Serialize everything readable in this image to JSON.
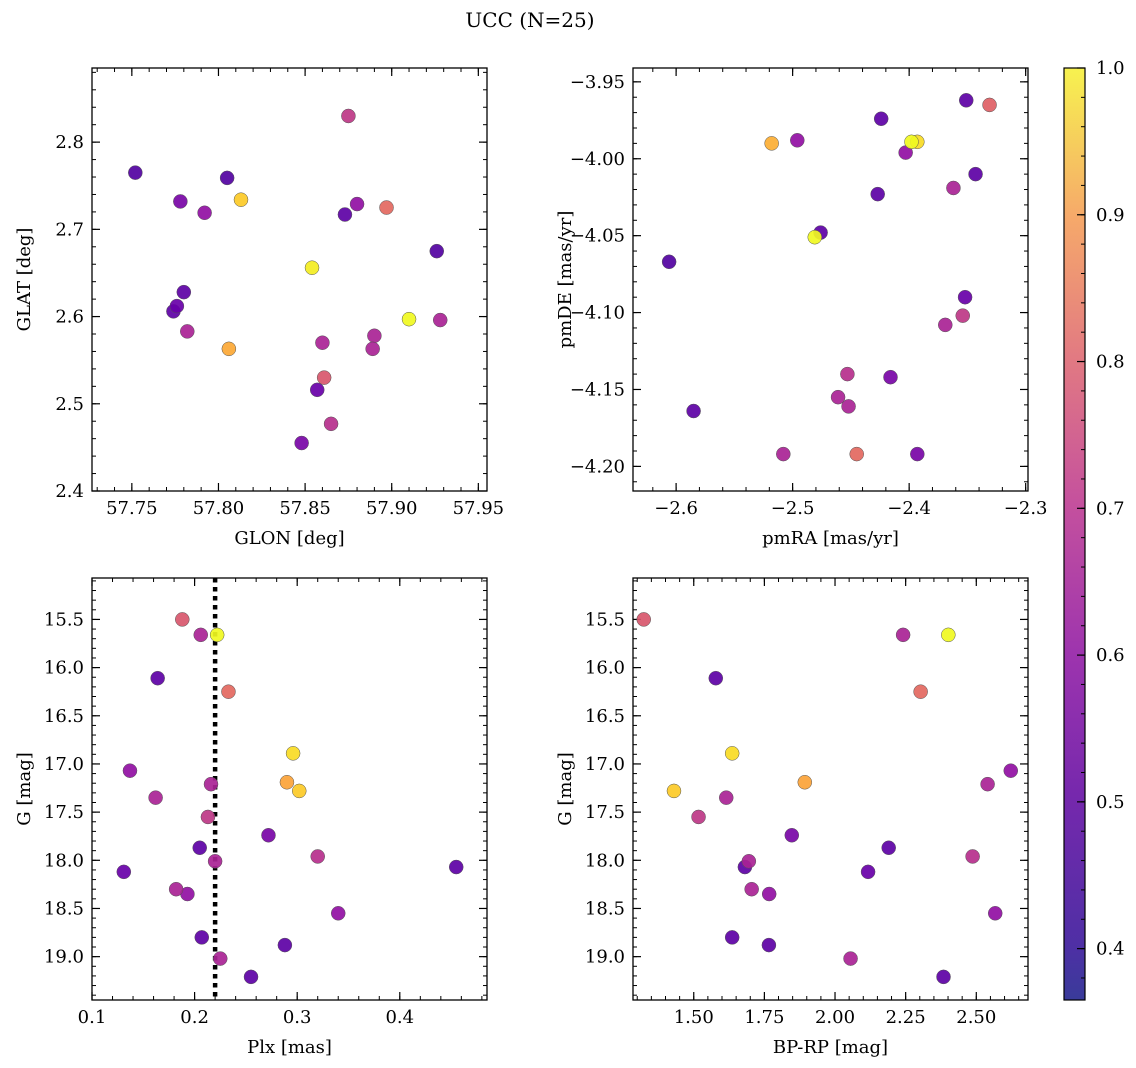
{
  "title": "UCC (N=25)",
  "colorbar": {
    "range": [
      0.365,
      1.0
    ],
    "ticks": [
      0.4,
      0.5,
      0.6,
      0.7,
      0.8,
      0.9,
      1.0
    ],
    "tick_labels": [
      "0.4",
      "0.5",
      "0.6",
      "0.7",
      "0.8",
      "0.9",
      "1.0"
    ],
    "colormap": "plasma"
  },
  "chart_data": [
    {
      "type": "scatter",
      "id": "glon-glat",
      "xlabel": "GLON [deg]",
      "ylabel": "GLAT [deg]",
      "xlim": [
        57.727,
        57.955
      ],
      "ylim": [
        2.4,
        2.885
      ],
      "xticks": [
        57.75,
        57.8,
        57.85,
        57.9,
        57.95
      ],
      "xtick_labels": [
        "57.75",
        "57.80",
        "57.85",
        "57.90",
        "57.95"
      ],
      "yticks": [
        2.4,
        2.5,
        2.6,
        2.7,
        2.8
      ],
      "ytick_labels": [
        "2.4",
        "2.5",
        "2.6",
        "2.7",
        "2.8"
      ],
      "points": [
        {
          "x": 57.752,
          "y": 2.765,
          "c": 0.38
        },
        {
          "x": 57.778,
          "y": 2.732,
          "c": 0.45
        },
        {
          "x": 57.792,
          "y": 2.719,
          "c": 0.5
        },
        {
          "x": 57.805,
          "y": 2.759,
          "c": 0.38
        },
        {
          "x": 57.813,
          "y": 2.734,
          "c": 0.92
        },
        {
          "x": 57.78,
          "y": 2.628,
          "c": 0.4
        },
        {
          "x": 57.776,
          "y": 2.612,
          "c": 0.42
        },
        {
          "x": 57.774,
          "y": 2.606,
          "c": 0.4
        },
        {
          "x": 57.782,
          "y": 2.583,
          "c": 0.55
        },
        {
          "x": 57.806,
          "y": 2.563,
          "c": 0.86
        },
        {
          "x": 57.875,
          "y": 2.83,
          "c": 0.6
        },
        {
          "x": 57.88,
          "y": 2.729,
          "c": 0.5
        },
        {
          "x": 57.873,
          "y": 2.717,
          "c": 0.4
        },
        {
          "x": 57.897,
          "y": 2.725,
          "c": 0.72
        },
        {
          "x": 57.926,
          "y": 2.675,
          "c": 0.38
        },
        {
          "x": 57.854,
          "y": 2.656,
          "c": 0.98
        },
        {
          "x": 57.91,
          "y": 2.597,
          "c": 1.0
        },
        {
          "x": 57.928,
          "y": 2.596,
          "c": 0.55
        },
        {
          "x": 57.89,
          "y": 2.578,
          "c": 0.55
        },
        {
          "x": 57.889,
          "y": 2.563,
          "c": 0.55
        },
        {
          "x": 57.86,
          "y": 2.57,
          "c": 0.55
        },
        {
          "x": 57.861,
          "y": 2.53,
          "c": 0.68
        },
        {
          "x": 57.857,
          "y": 2.516,
          "c": 0.42
        },
        {
          "x": 57.865,
          "y": 2.477,
          "c": 0.58
        },
        {
          "x": 57.848,
          "y": 2.455,
          "c": 0.45
        }
      ]
    },
    {
      "type": "scatter",
      "id": "pmra-pmde",
      "xlabel": "pmRA [mas/yr]",
      "ylabel": "pmDE [mas/yr]",
      "xlim": [
        -2.637,
        -2.298
      ],
      "ylim": [
        -4.216,
        -3.941
      ],
      "xticks": [
        -2.6,
        -2.5,
        -2.4,
        -2.3
      ],
      "xtick_labels": [
        "−2.6",
        "−2.5",
        "−2.4",
        "−2.3"
      ],
      "yticks": [
        -4.2,
        -4.15,
        -4.1,
        -4.05,
        -4.0,
        -3.95
      ],
      "ytick_labels": [
        "−4.20",
        "−4.15",
        "−4.10",
        "−4.05",
        "−4.00",
        "−3.95"
      ],
      "points": [
        {
          "x": -2.351,
          "y": -3.962,
          "c": 0.4
        },
        {
          "x": -2.331,
          "y": -3.965,
          "c": 0.7
        },
        {
          "x": -2.424,
          "y": -3.974,
          "c": 0.4
        },
        {
          "x": -2.496,
          "y": -3.988,
          "c": 0.5
        },
        {
          "x": -2.518,
          "y": -3.99,
          "c": 0.87
        },
        {
          "x": -2.398,
          "y": -3.989,
          "c": 1.0
        },
        {
          "x": -2.393,
          "y": -3.989,
          "c": 0.95
        },
        {
          "x": -2.403,
          "y": -3.996,
          "c": 0.5
        },
        {
          "x": -2.343,
          "y": -4.01,
          "c": 0.4
        },
        {
          "x": -2.362,
          "y": -4.019,
          "c": 0.55
        },
        {
          "x": -2.427,
          "y": -4.023,
          "c": 0.4
        },
        {
          "x": -2.476,
          "y": -4.048,
          "c": 0.4
        },
        {
          "x": -2.481,
          "y": -4.051,
          "c": 1.0
        },
        {
          "x": -2.606,
          "y": -4.067,
          "c": 0.38
        },
        {
          "x": -2.352,
          "y": -4.09,
          "c": 0.42
        },
        {
          "x": -2.354,
          "y": -4.102,
          "c": 0.6
        },
        {
          "x": -2.369,
          "y": -4.108,
          "c": 0.55
        },
        {
          "x": -2.453,
          "y": -4.14,
          "c": 0.58
        },
        {
          "x": -2.416,
          "y": -4.142,
          "c": 0.45
        },
        {
          "x": -2.461,
          "y": -4.155,
          "c": 0.55
        },
        {
          "x": -2.452,
          "y": -4.161,
          "c": 0.55
        },
        {
          "x": -2.585,
          "y": -4.164,
          "c": 0.4
        },
        {
          "x": -2.508,
          "y": -4.192,
          "c": 0.55
        },
        {
          "x": -2.445,
          "y": -4.192,
          "c": 0.72
        },
        {
          "x": -2.393,
          "y": -4.192,
          "c": 0.45
        }
      ]
    },
    {
      "type": "scatter",
      "id": "plx-g",
      "xlabel": "Plx [mas]",
      "ylabel": "G [mag]",
      "xlim": [
        0.1,
        0.485
      ],
      "ylim": [
        19.45,
        15.07
      ],
      "inverted_y": true,
      "xticks": [
        0.1,
        0.2,
        0.3,
        0.4
      ],
      "xtick_labels": [
        "0.1",
        "0.2",
        "0.3",
        "0.4"
      ],
      "yticks": [
        15.5,
        16.0,
        16.5,
        17.0,
        17.5,
        18.0,
        18.5,
        19.0
      ],
      "ytick_labels": [
        "15.5",
        "16.0",
        "16.5",
        "17.0",
        "17.5",
        "18.0",
        "18.5",
        "19.0"
      ],
      "vline": {
        "x": 0.22,
        "style": "dotted"
      },
      "points": [
        {
          "x": 0.188,
          "y": 15.5,
          "c": 0.68
        },
        {
          "x": 0.206,
          "y": 15.66,
          "c": 0.55
        },
        {
          "x": 0.222,
          "y": 15.66,
          "c": 1.0
        },
        {
          "x": 0.164,
          "y": 16.11,
          "c": 0.4
        },
        {
          "x": 0.233,
          "y": 16.25,
          "c": 0.72
        },
        {
          "x": 0.296,
          "y": 16.89,
          "c": 0.95
        },
        {
          "x": 0.137,
          "y": 17.07,
          "c": 0.5
        },
        {
          "x": 0.29,
          "y": 17.19,
          "c": 0.85
        },
        {
          "x": 0.302,
          "y": 17.28,
          "c": 0.92
        },
        {
          "x": 0.216,
          "y": 17.21,
          "c": 0.55
        },
        {
          "x": 0.162,
          "y": 17.35,
          "c": 0.55
        },
        {
          "x": 0.213,
          "y": 17.55,
          "c": 0.6
        },
        {
          "x": 0.272,
          "y": 17.74,
          "c": 0.45
        },
        {
          "x": 0.205,
          "y": 17.87,
          "c": 0.4
        },
        {
          "x": 0.32,
          "y": 17.96,
          "c": 0.58
        },
        {
          "x": 0.22,
          "y": 18.01,
          "c": 0.55
        },
        {
          "x": 0.455,
          "y": 18.07,
          "c": 0.4
        },
        {
          "x": 0.131,
          "y": 18.12,
          "c": 0.42
        },
        {
          "x": 0.182,
          "y": 18.3,
          "c": 0.55
        },
        {
          "x": 0.193,
          "y": 18.35,
          "c": 0.5
        },
        {
          "x": 0.34,
          "y": 18.55,
          "c": 0.5
        },
        {
          "x": 0.207,
          "y": 18.8,
          "c": 0.4
        },
        {
          "x": 0.288,
          "y": 18.88,
          "c": 0.4
        },
        {
          "x": 0.225,
          "y": 19.02,
          "c": 0.55
        },
        {
          "x": 0.255,
          "y": 19.21,
          "c": 0.4
        }
      ]
    },
    {
      "type": "scatter",
      "id": "bprp-g",
      "xlabel": "BP-RP [mag]",
      "ylabel": "G [mag]",
      "xlim": [
        1.285,
        2.683
      ],
      "ylim": [
        19.45,
        15.07
      ],
      "inverted_y": true,
      "xticks": [
        1.5,
        1.75,
        2.0,
        2.25,
        2.5
      ],
      "xtick_labels": [
        "1.50",
        "1.75",
        "2.00",
        "2.25",
        "2.50"
      ],
      "yticks": [
        15.5,
        16.0,
        16.5,
        17.0,
        17.5,
        18.0,
        18.5,
        19.0
      ],
      "ytick_labels": [
        "15.5",
        "16.0",
        "16.5",
        "17.0",
        "17.5",
        "18.0",
        "18.5",
        "19.0"
      ],
      "points": [
        {
          "x": 1.323,
          "y": 15.5,
          "c": 0.68
        },
        {
          "x": 2.241,
          "y": 15.66,
          "c": 0.55
        },
        {
          "x": 2.401,
          "y": 15.66,
          "c": 1.0
        },
        {
          "x": 1.578,
          "y": 16.11,
          "c": 0.4
        },
        {
          "x": 2.303,
          "y": 16.25,
          "c": 0.72
        },
        {
          "x": 1.636,
          "y": 16.89,
          "c": 0.95
        },
        {
          "x": 2.622,
          "y": 17.07,
          "c": 0.5
        },
        {
          "x": 1.893,
          "y": 17.19,
          "c": 0.85
        },
        {
          "x": 1.43,
          "y": 17.28,
          "c": 0.92
        },
        {
          "x": 2.54,
          "y": 17.21,
          "c": 0.55
        },
        {
          "x": 1.615,
          "y": 17.35,
          "c": 0.55
        },
        {
          "x": 1.517,
          "y": 17.55,
          "c": 0.6
        },
        {
          "x": 1.847,
          "y": 17.74,
          "c": 0.45
        },
        {
          "x": 2.19,
          "y": 17.87,
          "c": 0.4
        },
        {
          "x": 2.487,
          "y": 17.96,
          "c": 0.58
        },
        {
          "x": 1.695,
          "y": 18.01,
          "c": 0.55
        },
        {
          "x": 1.681,
          "y": 18.07,
          "c": 0.4
        },
        {
          "x": 2.117,
          "y": 18.12,
          "c": 0.42
        },
        {
          "x": 1.705,
          "y": 18.3,
          "c": 0.55
        },
        {
          "x": 1.767,
          "y": 18.35,
          "c": 0.5
        },
        {
          "x": 2.567,
          "y": 18.55,
          "c": 0.5
        },
        {
          "x": 1.636,
          "y": 18.8,
          "c": 0.4
        },
        {
          "x": 1.766,
          "y": 18.88,
          "c": 0.4
        },
        {
          "x": 2.055,
          "y": 19.02,
          "c": 0.55
        },
        {
          "x": 2.384,
          "y": 19.21,
          "c": 0.4
        }
      ]
    }
  ]
}
